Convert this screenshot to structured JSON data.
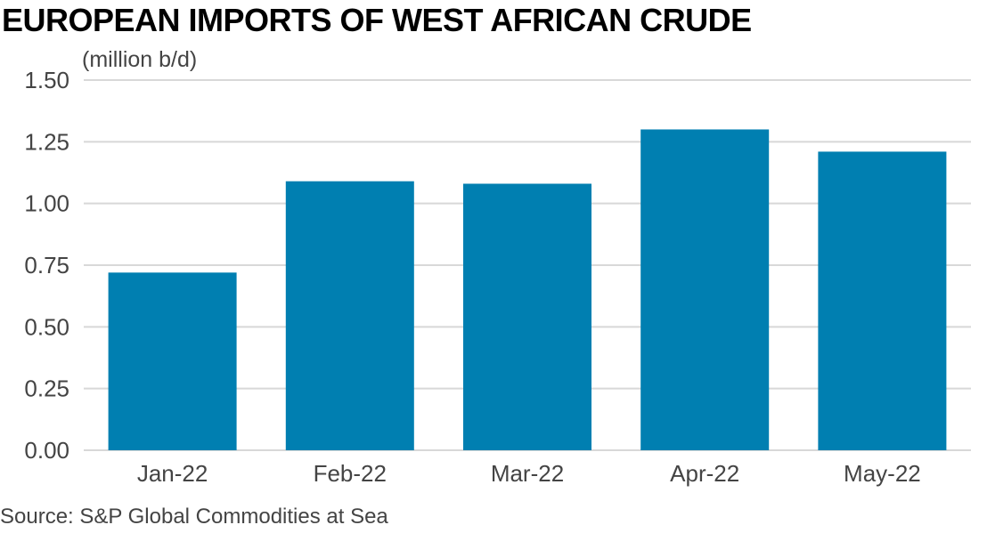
{
  "chart_data": {
    "type": "bar",
    "title": "EUROPEAN IMPORTS OF WEST AFRICAN CRUDE",
    "unit_label": "(million b/d)",
    "categories": [
      "Jan-22",
      "Feb-22",
      "Mar-22",
      "Apr-22",
      "May-22"
    ],
    "series": [
      {
        "values": [
          0.72,
          1.09,
          1.08,
          1.3,
          1.21
        ]
      }
    ],
    "yticks": [
      "0.00",
      "0.25",
      "0.50",
      "0.75",
      "1.00",
      "1.25",
      "1.50"
    ],
    "ylim": [
      0,
      1.5
    ],
    "grid": true,
    "bar_color": "#007fb1",
    "source": "Source: S&P Global Commodities at Sea"
  }
}
